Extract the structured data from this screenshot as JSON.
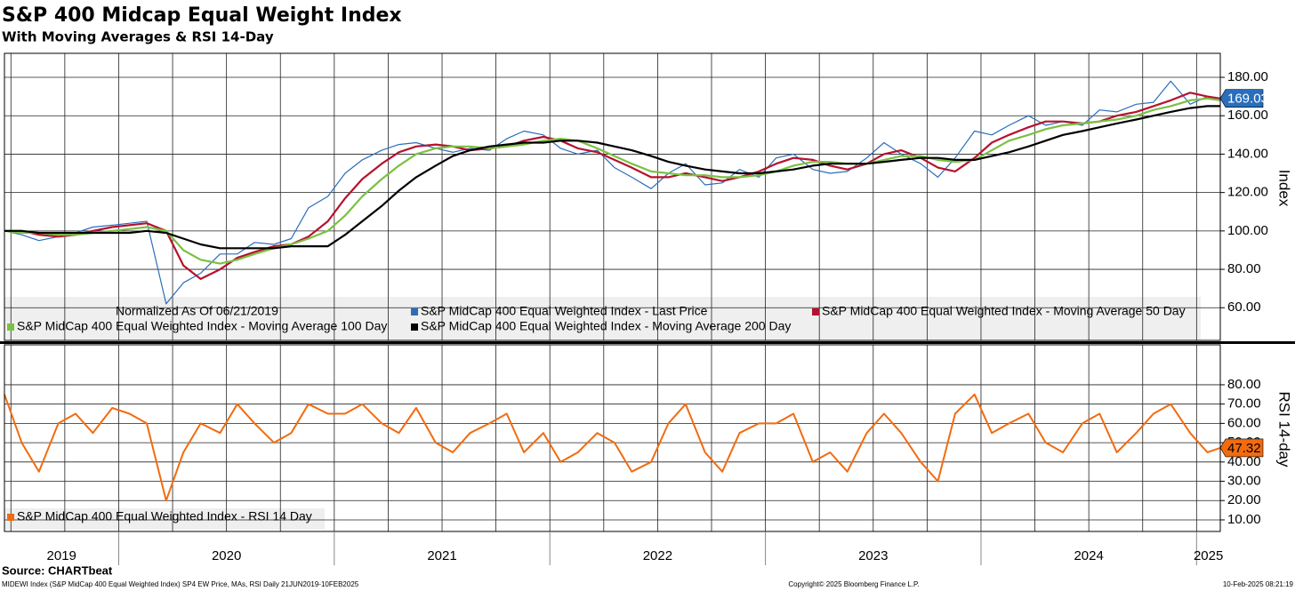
{
  "title": "S&P 400 Midcap Equal Weight Index",
  "subtitle": "With Moving Averages & RSI 14-Day",
  "source": "Source: CHARTbeat",
  "footer": {
    "left": "MIDEWI Index (S&P MidCap 400 Equal Weighted Index) SP4 EW Price, MAs, RSI  Daily 21JUN2019-10FEB2025",
    "center": "Copyright© 2025 Bloomberg Finance L.P.",
    "right": "10-Feb-2025 08:21:19"
  },
  "x_axis": {
    "xlim": [
      2019.47,
      2025.11
    ],
    "xticks": [
      {
        "value": 2019,
        "label": "2019"
      },
      {
        "value": 2020,
        "label": "2020"
      },
      {
        "value": 2021,
        "label": "2021"
      },
      {
        "value": 2022,
        "label": "2022"
      },
      {
        "value": 2023,
        "label": "2023"
      },
      {
        "value": 2024,
        "label": "2024"
      },
      {
        "value": 2025,
        "label": "2025"
      }
    ],
    "x": [
      2019.47,
      2019.55,
      2019.63,
      2019.72,
      2019.8,
      2019.88,
      2019.97,
      2020.05,
      2020.13,
      2020.22,
      2020.3,
      2020.38,
      2020.47,
      2020.55,
      2020.63,
      2020.72,
      2020.8,
      2020.88,
      2020.97,
      2021.05,
      2021.13,
      2021.22,
      2021.3,
      2021.38,
      2021.47,
      2021.55,
      2021.63,
      2021.72,
      2021.8,
      2021.88,
      2021.97,
      2022.05,
      2022.13,
      2022.22,
      2022.3,
      2022.38,
      2022.47,
      2022.55,
      2022.63,
      2022.72,
      2022.8,
      2022.88,
      2022.97,
      2023.05,
      2023.13,
      2023.22,
      2023.3,
      2023.38,
      2023.47,
      2023.55,
      2023.63,
      2023.72,
      2023.8,
      2023.88,
      2023.97,
      2024.05,
      2024.13,
      2024.22,
      2024.3,
      2024.38,
      2024.47,
      2024.55,
      2024.63,
      2024.72,
      2024.8,
      2024.88,
      2024.97,
      2025.05,
      2025.11
    ]
  },
  "chart_data": [
    {
      "type": "line",
      "ylabel": "Index",
      "note": "Normalized As Of 06/21/2019",
      "grid": true,
      "ylim": [
        43,
        192.5
      ],
      "yticks": [
        {
          "value": 60,
          "label": "60.00"
        },
        {
          "value": 80,
          "label": "80.00"
        },
        {
          "value": 100,
          "label": "100.00"
        },
        {
          "value": 120,
          "label": "120.00"
        },
        {
          "value": 140,
          "label": "140.00"
        },
        {
          "value": 160,
          "label": "160.00"
        },
        {
          "value": 180,
          "label": "180.00"
        }
      ],
      "series": [
        {
          "name": "S&P MidCap 400 Equal Weighted Index - Last Price",
          "color": "#2a6ebb",
          "width": 1.2,
          "values": [
            100,
            98,
            95,
            97,
            99,
            102,
            103,
            104,
            105,
            62,
            73,
            78,
            88,
            88,
            94,
            93,
            96,
            112,
            118,
            130,
            137,
            142,
            145,
            146,
            143,
            141,
            143,
            142,
            148,
            152,
            150,
            143,
            140,
            142,
            133,
            128,
            122,
            130,
            135,
            124,
            125,
            132,
            128,
            138,
            140,
            132,
            130,
            131,
            138,
            146,
            140,
            135,
            128,
            138,
            152,
            150,
            155,
            160,
            155,
            157,
            155,
            163,
            162,
            166,
            167,
            178,
            166,
            170,
            169.03
          ]
        },
        {
          "name": "S&P MidCap 400 Equal Weighted Index - Moving Average 50 Day",
          "color": "#b5122e",
          "width": 2.2,
          "values": [
            100,
            100,
            98,
            97,
            98,
            100,
            102,
            103,
            104,
            100,
            82,
            75,
            80,
            86,
            89,
            92,
            93,
            97,
            105,
            117,
            127,
            135,
            141,
            144,
            145,
            144,
            142,
            143,
            144,
            147,
            149,
            147,
            143,
            141,
            137,
            133,
            128,
            128,
            130,
            128,
            126,
            128,
            131,
            135,
            138,
            137,
            134,
            132,
            135,
            140,
            142,
            138,
            133,
            131,
            138,
            146,
            150,
            154,
            157,
            157,
            156,
            157,
            160,
            162,
            165,
            168,
            172,
            170,
            169
          ]
        },
        {
          "name": "S&P MidCap 400 Equal Weighted Index - Moving Average 100 Day",
          "color": "#7ac143",
          "width": 2.2,
          "values": [
            100,
            99,
            99,
            98,
            98,
            99,
            100,
            101,
            102,
            100,
            90,
            85,
            83,
            85,
            88,
            91,
            93,
            96,
            100,
            108,
            118,
            127,
            134,
            140,
            143,
            144,
            144,
            143,
            144,
            145,
            147,
            148,
            147,
            143,
            139,
            135,
            131,
            130,
            129,
            129,
            128,
            128,
            129,
            131,
            134,
            136,
            136,
            135,
            135,
            137,
            139,
            139,
            137,
            136,
            137,
            142,
            147,
            150,
            153,
            155,
            156,
            157,
            158,
            160,
            163,
            165,
            168,
            169,
            168
          ]
        },
        {
          "name": "S&P MidCap 400 Equal Weighted Index - Moving Average 200 Day",
          "color": "#000000",
          "width": 2.2,
          "values": [
            100,
            100,
            99,
            99,
            99,
            99,
            99,
            99,
            100,
            99,
            96,
            93,
            91,
            91,
            91,
            91,
            92,
            92,
            92,
            98,
            105,
            113,
            121,
            128,
            134,
            139,
            142,
            144,
            145,
            146,
            146,
            147,
            147,
            146,
            144,
            142,
            139,
            136,
            134,
            132,
            131,
            130,
            130,
            131,
            132,
            134,
            135,
            135,
            135,
            136,
            137,
            138,
            138,
            137,
            137,
            139,
            141,
            144,
            147,
            150,
            152,
            154,
            156,
            158,
            160,
            162,
            164,
            165,
            165
          ]
        }
      ]
    },
    {
      "type": "line",
      "ylabel": "RSI 14-day",
      "grid": true,
      "ylim": [
        4,
        100.7
      ],
      "yticks": [
        {
          "value": 10,
          "label": "10.00"
        },
        {
          "value": 20,
          "label": "20.00"
        },
        {
          "value": 30,
          "label": "30.00"
        },
        {
          "value": 40,
          "label": "40.00"
        },
        {
          "value": 50,
          "label": "50.00"
        },
        {
          "value": 60,
          "label": "60.00"
        },
        {
          "value": 70,
          "label": "70.00"
        },
        {
          "value": 80,
          "label": "80.00"
        }
      ],
      "series": [
        {
          "name": "S&P MidCap 400 Equal Weighted Index - RSI 14 Day",
          "color": "#f26b0f",
          "width": 2,
          "values": [
            75,
            50,
            35,
            60,
            65,
            55,
            68,
            65,
            60,
            20,
            45,
            60,
            55,
            70,
            60,
            50,
            55,
            70,
            65,
            65,
            70,
            60,
            55,
            68,
            50,
            45,
            55,
            60,
            65,
            45,
            55,
            40,
            45,
            55,
            50,
            35,
            40,
            60,
            70,
            45,
            35,
            55,
            60,
            60,
            65,
            40,
            45,
            35,
            55,
            65,
            55,
            40,
            30,
            65,
            75,
            55,
            60,
            65,
            50,
            45,
            60,
            65,
            45,
            55,
            65,
            70,
            55,
            45,
            47.32
          ]
        }
      ]
    }
  ]
}
